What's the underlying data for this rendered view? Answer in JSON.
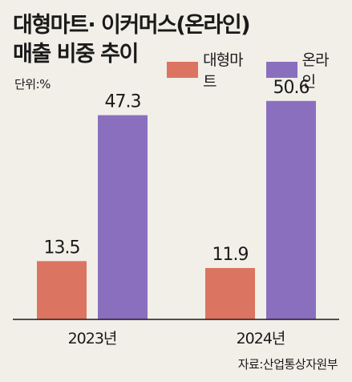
{
  "chart_data": {
    "type": "bar",
    "title_line1": "대형마트· 이커머스(온라인)",
    "title_line2": "매출 비중 추이",
    "unit": "단위:%",
    "source": "자료:산업통상자원부",
    "categories": [
      "2023년",
      "2024년"
    ],
    "series": [
      {
        "name": "대형마트",
        "values": [
          13.5,
          11.9
        ],
        "color": "#dc7462"
      },
      {
        "name": "온라인",
        "values": [
          47.3,
          50.6
        ],
        "color": "#8a6fbf"
      }
    ],
    "ylim": [
      0,
      55
    ]
  }
}
